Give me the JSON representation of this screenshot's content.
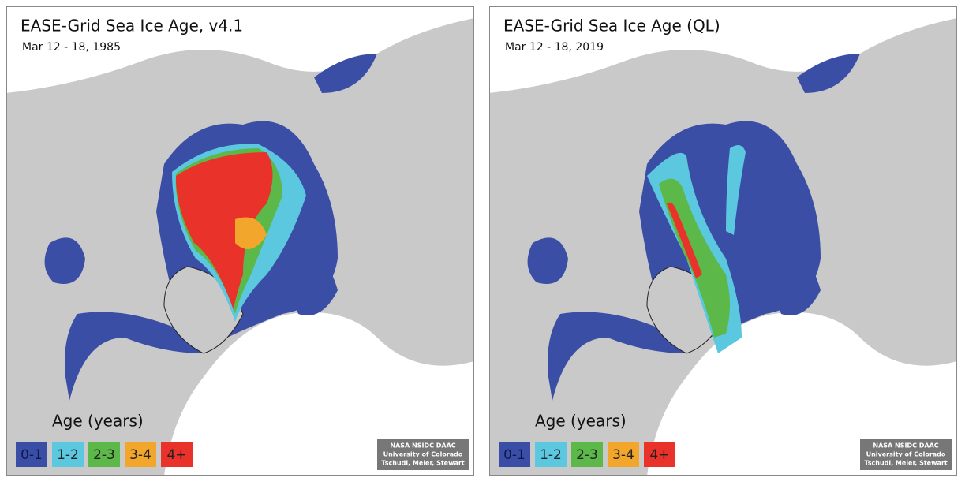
{
  "panels": [
    {
      "title": "EASE-Grid Sea Ice Age, v4.1",
      "date": "Mar 12 - 18, 1985",
      "legend": {
        "title": "Age (years)",
        "items": [
          {
            "label": "0-1",
            "color": "#3b4ea6"
          },
          {
            "label": "1-2",
            "color": "#5bc8e0"
          },
          {
            "label": "2-3",
            "color": "#5cb848"
          },
          {
            "label": "3-4",
            "color": "#f2a62b"
          },
          {
            "label": "4+",
            "color": "#e8322a"
          }
        ]
      },
      "credit": [
        "NASA NSIDC DAAC",
        "University of Colorado",
        "Tschudi, Meier, Stewart"
      ]
    },
    {
      "title": "EASE-Grid Sea Ice Age (QL)",
      "date": "Mar 12 - 18, 2019",
      "legend": {
        "title": "Age (years)",
        "items": [
          {
            "label": "0-1",
            "color": "#3b4ea6"
          },
          {
            "label": "1-2",
            "color": "#5bc8e0"
          },
          {
            "label": "2-3",
            "color": "#5cb848"
          },
          {
            "label": "3-4",
            "color": "#f2a62b"
          },
          {
            "label": "4+",
            "color": "#e8322a"
          }
        ]
      },
      "credit": [
        "NASA NSIDC DAAC",
        "University of Colorado",
        "Tschudi, Meier, Stewart"
      ]
    }
  ]
}
